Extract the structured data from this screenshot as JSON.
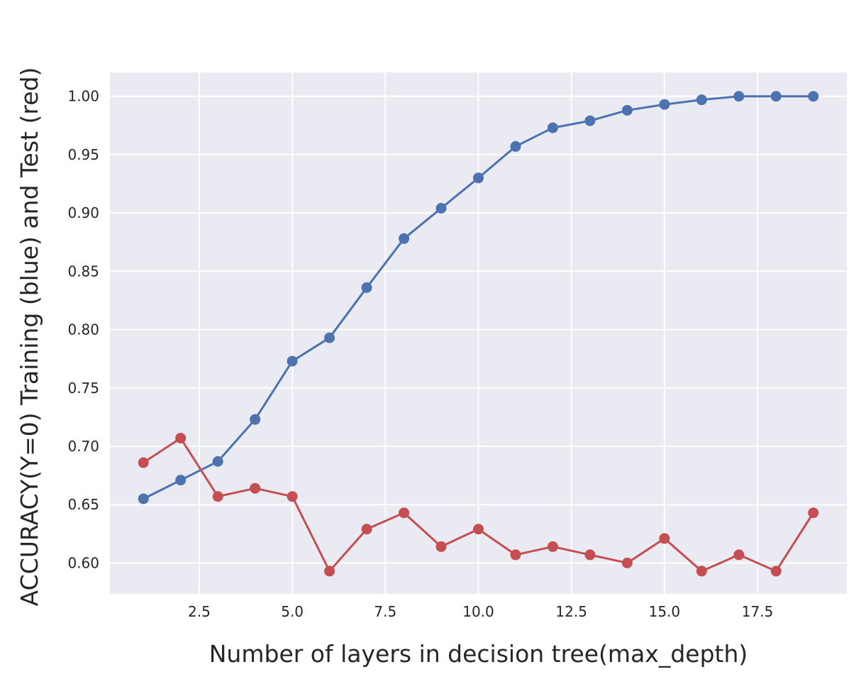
{
  "chart_data": {
    "type": "line",
    "title": "",
    "xlabel": "Number of layers in decision tree(max_depth)",
    "ylabel": "ACCURACY(Y=0) Training (blue) and Test (red)",
    "x": [
      1,
      2,
      3,
      4,
      5,
      6,
      7,
      8,
      9,
      10,
      11,
      12,
      13,
      14,
      15,
      16,
      17,
      18,
      19
    ],
    "xlim": [
      0.1,
      19.9
    ],
    "ylim": [
      0.5735,
      1.0205
    ],
    "xticks": [
      2.5,
      5.0,
      7.5,
      10.0,
      12.5,
      15.0,
      17.5
    ],
    "xtick_labels": [
      "2.5",
      "5.0",
      "7.5",
      "10.0",
      "12.5",
      "15.0",
      "17.5"
    ],
    "yticks": [
      0.6,
      0.65,
      0.7,
      0.75,
      0.8,
      0.85,
      0.9,
      0.95,
      1.0
    ],
    "ytick_labels": [
      "0.60",
      "0.65",
      "0.70",
      "0.75",
      "0.80",
      "0.85",
      "0.90",
      "0.95",
      "1.00"
    ],
    "grid": true,
    "legend": "none",
    "colors": {
      "background": "#eaeaf2",
      "grid": "#ffffff",
      "text": "#262626"
    },
    "series": [
      {
        "color": "#4c72b0",
        "marker": "circle",
        "values": [
          0.655,
          0.671,
          0.687,
          0.723,
          0.773,
          0.793,
          0.836,
          0.878,
          0.904,
          0.93,
          0.957,
          0.973,
          0.979,
          0.988,
          0.993,
          0.997,
          1.0,
          1.0,
          1.0
        ]
      },
      {
        "color": "#c44e52",
        "marker": "circle",
        "values": [
          0.686,
          0.707,
          0.657,
          0.664,
          0.657,
          0.593,
          0.629,
          0.643,
          0.614,
          0.629,
          0.607,
          0.614,
          0.607,
          0.6,
          0.621,
          0.593,
          0.607,
          0.593,
          0.643
        ]
      }
    ]
  }
}
